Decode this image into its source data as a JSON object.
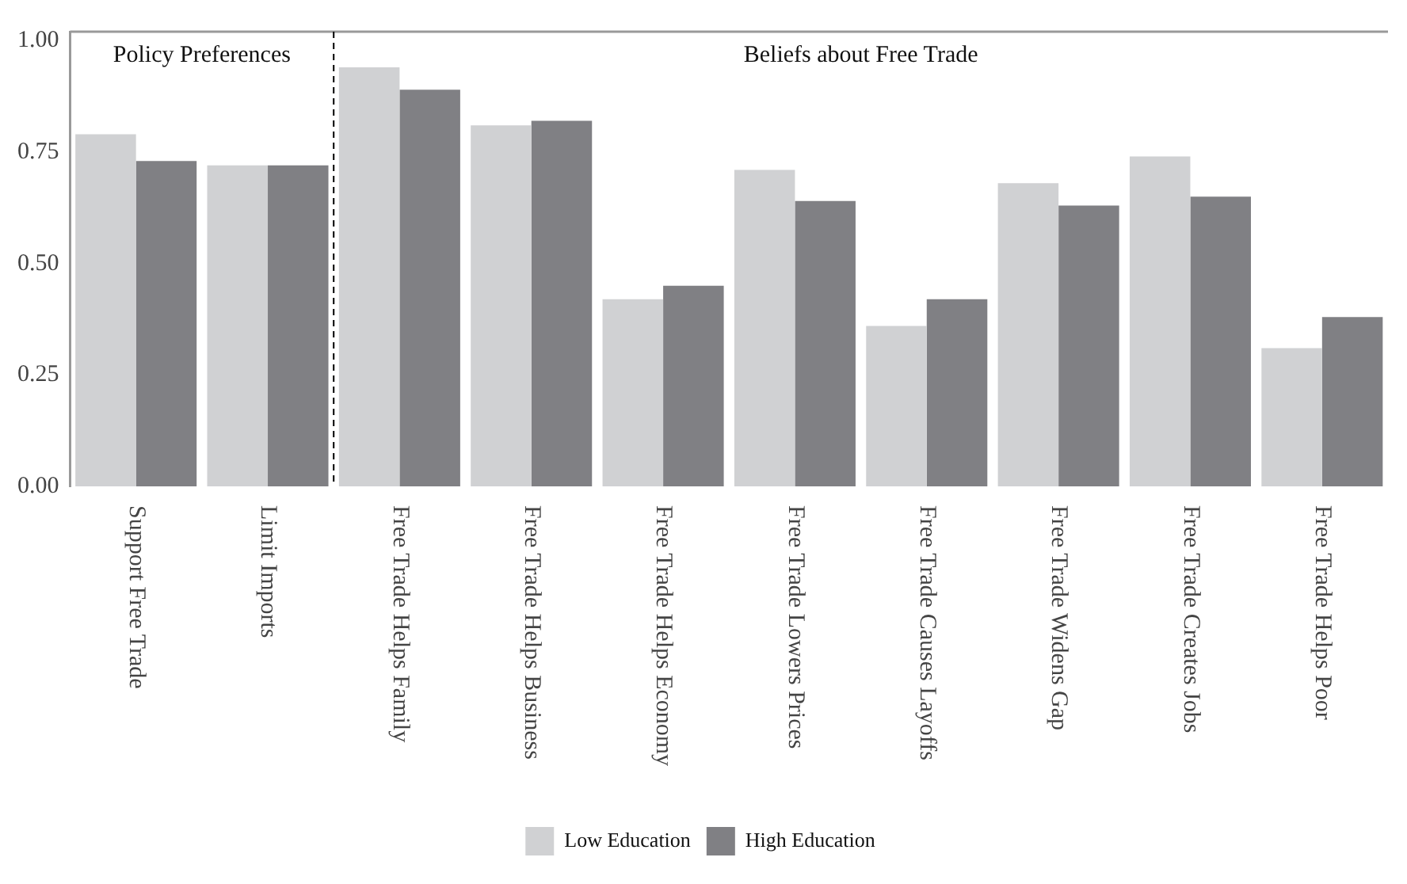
{
  "chart_data": {
    "type": "bar",
    "categories": [
      "Support Free Trade",
      "Limit Imports",
      "Free Trade Helps Family",
      "Free Trade Helps Business",
      "Free Trade Helps Economy",
      "Free Trade Lowers Prices",
      "Free Trade Causes Layoffs",
      "Free Trade Widens Gap",
      "Free Trade Creates Jobs",
      "Free Trade Helps Poor"
    ],
    "series": [
      {
        "name": "Low Education",
        "color": "#d0d1d3",
        "values": [
          0.79,
          0.72,
          0.94,
          0.81,
          0.42,
          0.71,
          0.36,
          0.68,
          0.74,
          0.31
        ]
      },
      {
        "name": "High Education",
        "color": "#808084",
        "values": [
          0.73,
          0.72,
          0.89,
          0.82,
          0.45,
          0.64,
          0.42,
          0.63,
          0.65,
          0.38
        ]
      }
    ],
    "ylim": [
      0,
      1.02
    ],
    "yticks": [
      {
        "value": 0,
        "label": "0.00"
      },
      {
        "value": 0.25,
        "label": "0.25"
      },
      {
        "value": 0.5,
        "label": "0.50"
      },
      {
        "value": 0.75,
        "label": "0.75"
      },
      {
        "value": 1,
        "label": "1.00"
      }
    ],
    "grid": false,
    "legend": "bottom",
    "annotations": [
      "Policy Preferences",
      "Beliefs about Free Trade"
    ]
  }
}
